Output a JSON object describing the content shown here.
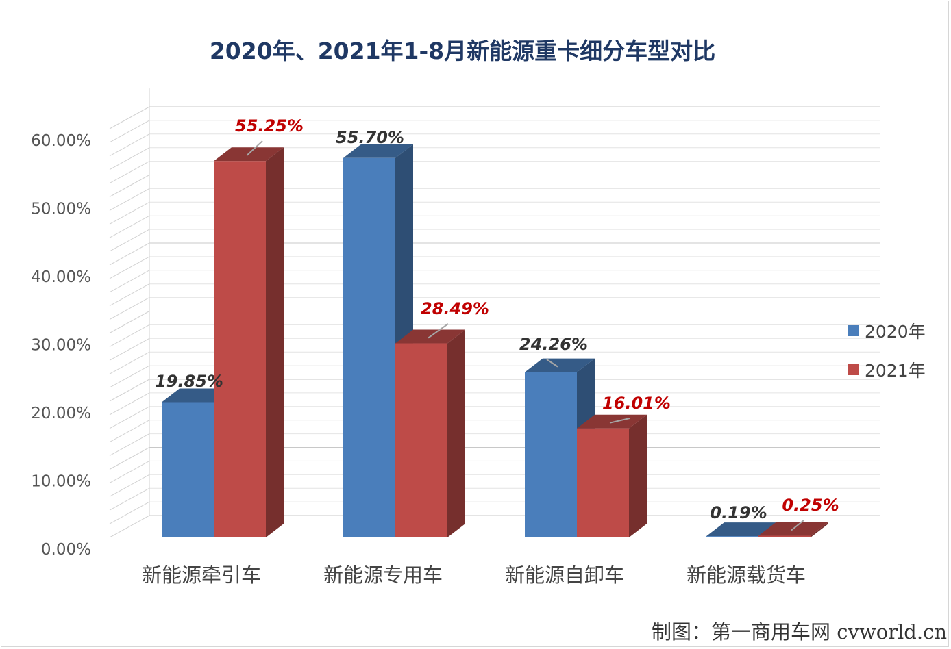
{
  "chart_data": {
    "type": "bar",
    "title": "2020年、2021年1-8月新能源重卡细分车型对比",
    "categories": [
      "新能源牵引车",
      "新能源专用车",
      "新能源自卸车",
      "新能源载货车"
    ],
    "series": [
      {
        "name": "2020年",
        "values": [
          19.85,
          55.7,
          24.26,
          0.19
        ],
        "labels": [
          "19.85%",
          "55.70%",
          "24.26%",
          "0.19%"
        ]
      },
      {
        "name": "2021年",
        "values": [
          55.25,
          28.49,
          16.01,
          0.25
        ],
        "labels": [
          "55.25%",
          "28.49%",
          "16.01%",
          "0.25%"
        ]
      }
    ],
    "y_ticks": [
      "0.00%",
      "10.00%",
      "20.00%",
      "30.00%",
      "40.00%",
      "50.00%",
      "60.00%"
    ],
    "ylim": [
      0,
      63
    ],
    "grid": true,
    "legend_position": "right",
    "three_d": true
  },
  "colors": {
    "series_2020": "#4a7ebb",
    "series_2021": "#be4b48",
    "label_2020": "#333333",
    "label_2021": "#c00000",
    "title": "#1f3864"
  },
  "source": "制图：第一商用车网 cvworld.cn"
}
